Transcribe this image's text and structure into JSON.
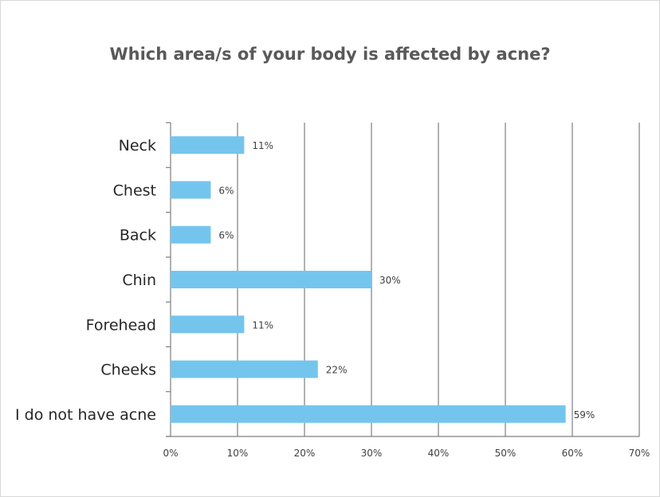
{
  "chart_data": {
    "type": "bar",
    "orientation": "horizontal",
    "title": "Which area/s of your body is affected by acne?",
    "categories": [
      "Neck",
      "Chest",
      "Back",
      "Chin",
      "Forehead",
      "Cheeks",
      "I do not have acne"
    ],
    "values": [
      11,
      6,
      6,
      30,
      11,
      22,
      59
    ],
    "data_labels": [
      "11%",
      "6%",
      "6%",
      "30%",
      "11%",
      "22%",
      "59%"
    ],
    "x_ticks": [
      "0%",
      "10%",
      "20%",
      "30%",
      "40%",
      "50%",
      "60%",
      "70%"
    ],
    "xlim": [
      0,
      70
    ],
    "xlabel": "",
    "ylabel": "",
    "grid": "vertical major gridlines",
    "legend": "none",
    "bar_color": "#74c5ee",
    "gridline_color": "#7f7f7f"
  }
}
